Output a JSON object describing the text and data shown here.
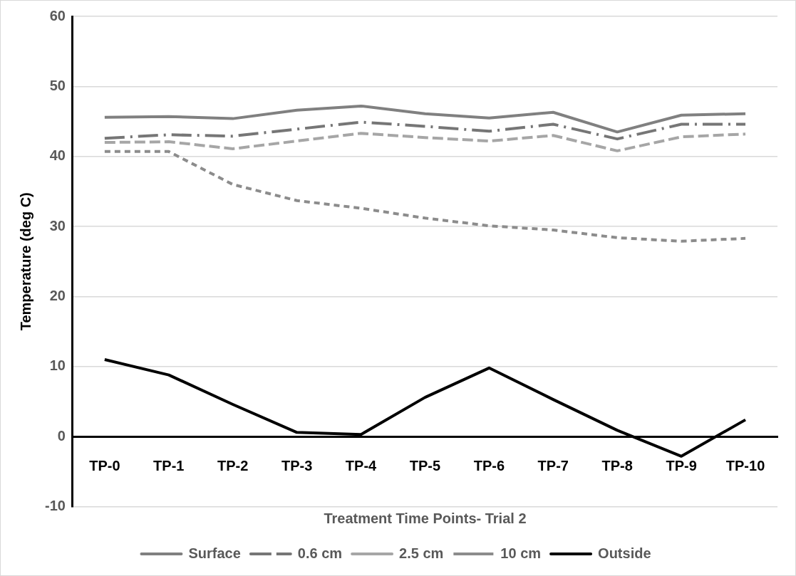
{
  "chart_data": {
    "type": "line",
    "xlabel": "Treatment Time Points- Trial 2",
    "ylabel": "Temperature (deg C)",
    "categories": [
      "TP-0",
      "TP-1",
      "TP-2",
      "TP-3",
      "TP-4",
      "TP-5",
      "TP-6",
      "TP-7",
      "TP-8",
      "TP-9",
      "TP-10"
    ],
    "series": [
      {
        "name": "Surface",
        "color": "#808080",
        "line_style": "solid",
        "values": [
          45.6,
          45.7,
          45.4,
          46.6,
          47.2,
          46.1,
          45.5,
          46.3,
          43.5,
          45.9,
          46.1
        ]
      },
      {
        "name": "0.6 cm",
        "color": "#767676",
        "line_style": "dashdot",
        "values": [
          42.6,
          43.1,
          42.9,
          43.9,
          44.9,
          44.3,
          43.6,
          44.6,
          42.5,
          44.6,
          44.6
        ]
      },
      {
        "name": "2.5 cm",
        "color": "#a6a6a6",
        "line_style": "dashed",
        "values": [
          42.0,
          42.1,
          41.1,
          42.2,
          43.3,
          42.7,
          42.2,
          43.0,
          40.8,
          42.8,
          43.2
        ]
      },
      {
        "name": "10 cm",
        "color": "#8c8c8c",
        "line_style": "dotted",
        "values": [
          40.7,
          40.7,
          36.0,
          33.7,
          32.6,
          31.2,
          30.1,
          29.5,
          28.4,
          27.9,
          28.3
        ]
      },
      {
        "name": "Outside",
        "color": "#000000",
        "line_style": "solid",
        "values": [
          11.0,
          8.8,
          4.6,
          0.6,
          0.3,
          5.6,
          9.8,
          5.3,
          0.9,
          -2.8,
          2.4
        ]
      }
    ],
    "ylim": [
      -10,
      60
    ],
    "yticks": [
      -10,
      0,
      10,
      20,
      30,
      40,
      50,
      60
    ],
    "grid": "y",
    "legend": "bottom",
    "marker": "none"
  }
}
